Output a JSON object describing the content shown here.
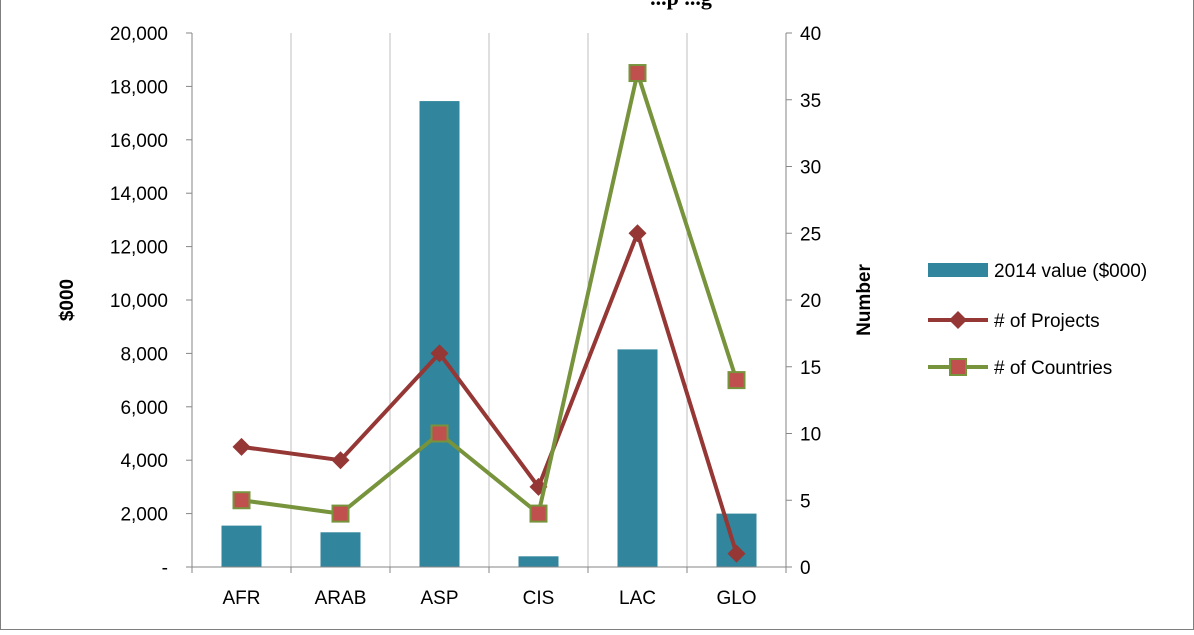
{
  "chart_data": {
    "type": "bar",
    "title": "...p ...g",
    "categories": [
      "AFR",
      "ARAB",
      "ASP",
      "CIS",
      "LAC",
      "GLO"
    ],
    "y_left": {
      "label": "$000",
      "lim": [
        0,
        20000
      ],
      "ticks": [
        "-",
        "2,000",
        "4,000",
        "6,000",
        "8,000",
        "10,000",
        "12,000",
        "14,000",
        "16,000",
        "18,000",
        "20,000"
      ]
    },
    "y_right": {
      "label": "Number",
      "lim": [
        0,
        40
      ],
      "ticks": [
        "0",
        "5",
        "10",
        "15",
        "20",
        "25",
        "30",
        "35",
        "40"
      ]
    },
    "series": [
      {
        "name": "2014 value ($000)",
        "kind": "bar",
        "axis": "left",
        "color": "#31859c",
        "values": [
          1550,
          1300,
          17450,
          400,
          8150,
          2000
        ]
      },
      {
        "name": "# of Projects",
        "kind": "line",
        "axis": "right",
        "color": "#953735",
        "marker": "diamond",
        "values": [
          9,
          8,
          16,
          6,
          25,
          1
        ]
      },
      {
        "name": "# of Countries",
        "kind": "line",
        "axis": "right",
        "color": "#77933c",
        "marker": "square",
        "marker_fill": "#c0504d",
        "values": [
          5,
          4,
          10,
          4,
          37,
          14
        ]
      }
    ],
    "grid": "vertical",
    "legend": "right"
  }
}
